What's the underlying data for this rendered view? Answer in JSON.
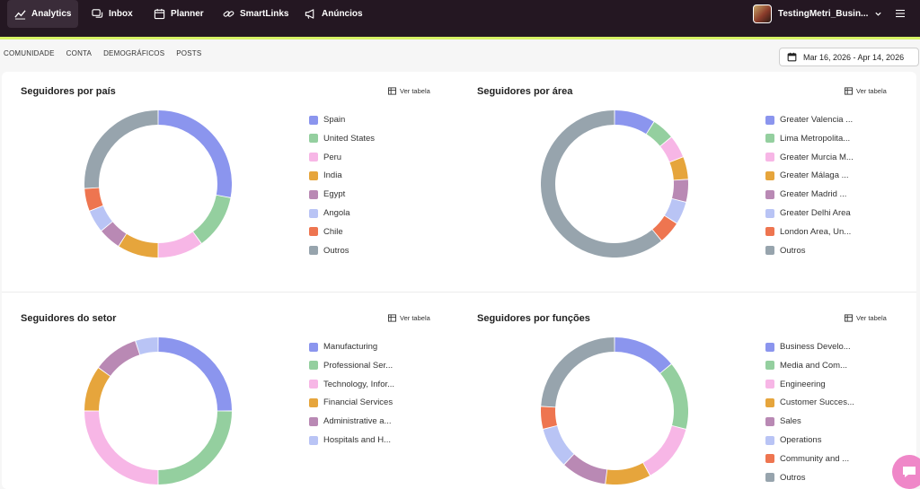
{
  "nav": {
    "items": [
      {
        "label": "Analytics",
        "icon": "analytics-icon",
        "active": true
      },
      {
        "label": "Inbox",
        "icon": "inbox-icon",
        "active": false
      },
      {
        "label": "Planner",
        "icon": "calendar-icon",
        "active": false
      },
      {
        "label": "SmartLinks",
        "icon": "link-icon",
        "active": false
      },
      {
        "label": "Anúncios",
        "icon": "megaphone-icon",
        "active": false
      }
    ],
    "account_name": "TestingMetri_Busin..."
  },
  "subtabs": [
    "COMUNIDADE",
    "CONTA",
    "DEMOGRÁFICOS",
    "POSTS"
  ],
  "date_range": "Mar 16, 2026 - Apr 14, 2026",
  "ver_tabela_label": "Ver tabela",
  "colors": {
    "blue": "#8b95ee",
    "green": "#94cf9f",
    "pink": "#f7b6e6",
    "orange": "#e6a53c",
    "mauve": "#b989b4",
    "lavender": "#b9c4f5",
    "red": "#ee7550",
    "gray": "#97a4ad",
    "nav_bg": "#241722",
    "accent_line": "#d7f266"
  },
  "chart_data": [
    {
      "type": "pie",
      "title": "Seguidores por país",
      "categories": [
        "Spain",
        "United States",
        "Peru",
        "India",
        "Egypt",
        "Angola",
        "Chile",
        "Outros"
      ],
      "values": [
        28,
        12,
        10,
        9,
        5,
        5,
        5,
        26
      ],
      "colors": [
        "#8b95ee",
        "#94cf9f",
        "#f7b6e6",
        "#e6a53c",
        "#b989b4",
        "#b9c4f5",
        "#ee7550",
        "#97a4ad"
      ]
    },
    {
      "type": "pie",
      "title": "Seguidores por área",
      "categories": [
        "Greater Valencia ...",
        "Lima Metropolita...",
        "Greater Murcia M...",
        "Greater Málaga ...",
        "Greater Madrid ...",
        "Greater Delhi Area",
        "London Area, Un...",
        "Outros"
      ],
      "values": [
        9,
        5,
        5,
        5,
        5,
        5,
        5,
        61
      ],
      "colors": [
        "#8b95ee",
        "#94cf9f",
        "#f7b6e6",
        "#e6a53c",
        "#b989b4",
        "#b9c4f5",
        "#ee7550",
        "#97a4ad"
      ]
    },
    {
      "type": "pie",
      "title": "Seguidores do setor",
      "categories": [
        "Manufacturing",
        "Professional Ser...",
        "Technology, Infor...",
        "Financial Services",
        "Administrative a...",
        "Hospitals and H..."
      ],
      "values": [
        25,
        25,
        25,
        10,
        10,
        5
      ],
      "colors": [
        "#8b95ee",
        "#94cf9f",
        "#f7b6e6",
        "#e6a53c",
        "#b989b4",
        "#b9c4f5"
      ]
    },
    {
      "type": "pie",
      "title": "Seguidores por funções",
      "categories": [
        "Business Develo...",
        "Media and Com...",
        "Engineering",
        "Customer Succes...",
        "Sales",
        "Operations",
        "Community and ...",
        "Outros"
      ],
      "values": [
        14,
        15,
        13,
        10,
        10,
        9,
        5,
        24
      ],
      "colors": [
        "#8b95ee",
        "#94cf9f",
        "#f7b6e6",
        "#e6a53c",
        "#b989b4",
        "#b9c4f5",
        "#ee7550",
        "#97a4ad"
      ]
    }
  ]
}
